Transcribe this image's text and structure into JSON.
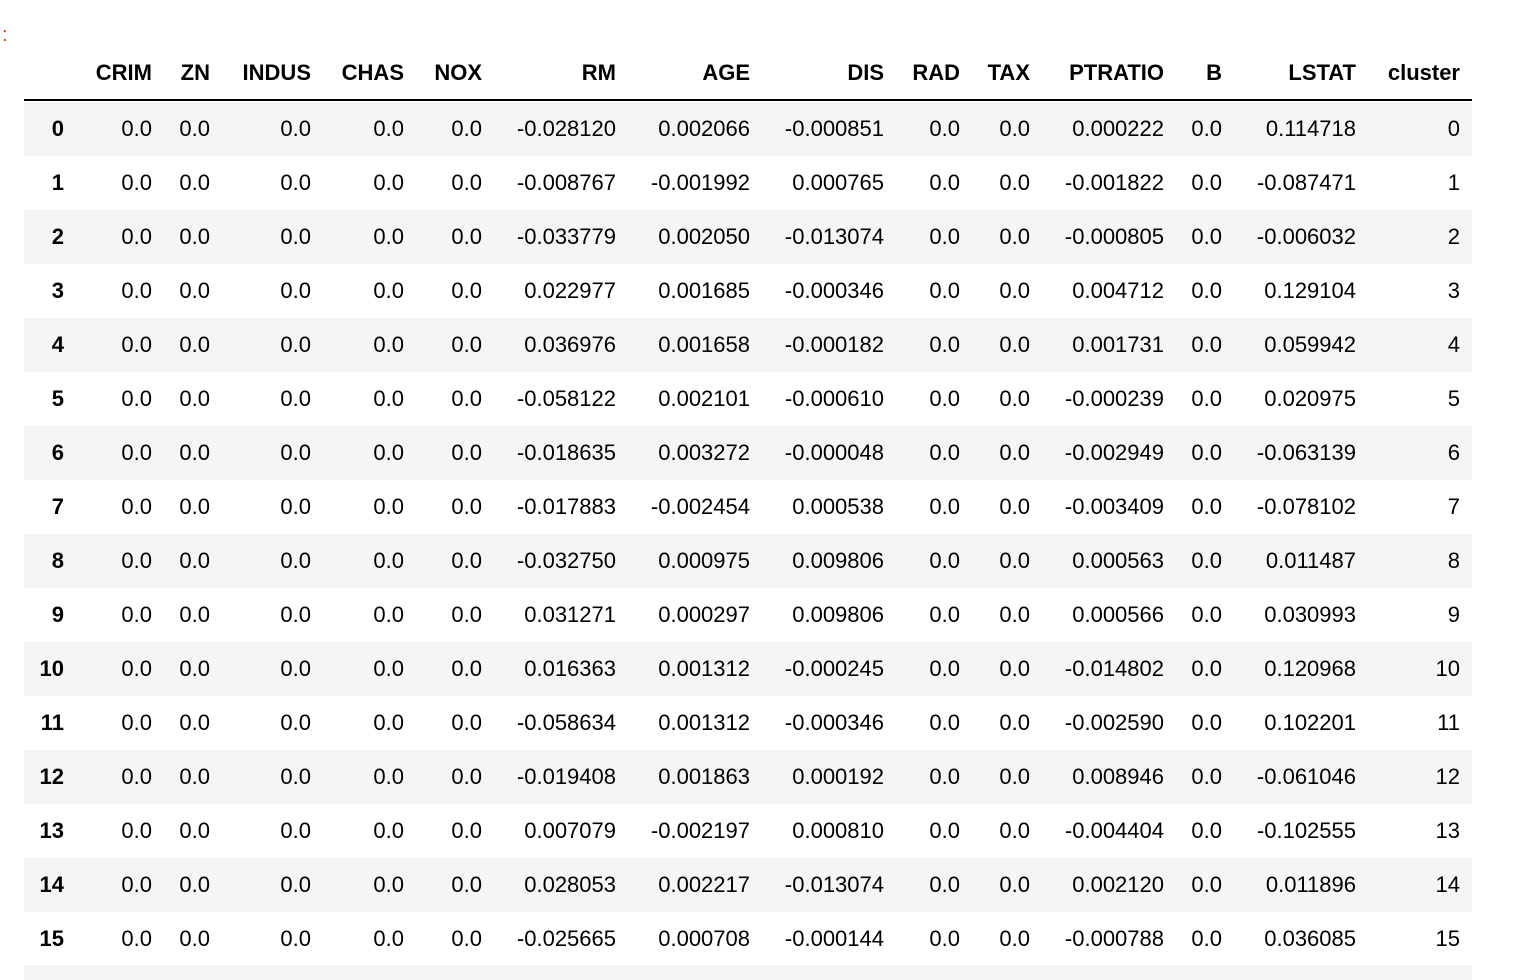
{
  "prompt": ":",
  "table": {
    "columns": [
      "CRIM",
      "ZN",
      "INDUS",
      "CHAS",
      "NOX",
      "RM",
      "AGE",
      "DIS",
      "RAD",
      "TAX",
      "PTRATIO",
      "B",
      "LSTAT",
      "cluster"
    ],
    "rows": [
      {
        "index": "0",
        "cells": [
          "0.0",
          "0.0",
          "0.0",
          "0.0",
          "0.0",
          "-0.028120",
          "0.002066",
          "-0.000851",
          "0.0",
          "0.0",
          "0.000222",
          "0.0",
          "0.114718",
          "0"
        ]
      },
      {
        "index": "1",
        "cells": [
          "0.0",
          "0.0",
          "0.0",
          "0.0",
          "0.0",
          "-0.008767",
          "-0.001992",
          "0.000765",
          "0.0",
          "0.0",
          "-0.001822",
          "0.0",
          "-0.087471",
          "1"
        ]
      },
      {
        "index": "2",
        "cells": [
          "0.0",
          "0.0",
          "0.0",
          "0.0",
          "0.0",
          "-0.033779",
          "0.002050",
          "-0.013074",
          "0.0",
          "0.0",
          "-0.000805",
          "0.0",
          "-0.006032",
          "2"
        ]
      },
      {
        "index": "3",
        "cells": [
          "0.0",
          "0.0",
          "0.0",
          "0.0",
          "0.0",
          "0.022977",
          "0.001685",
          "-0.000346",
          "0.0",
          "0.0",
          "0.004712",
          "0.0",
          "0.129104",
          "3"
        ]
      },
      {
        "index": "4",
        "cells": [
          "0.0",
          "0.0",
          "0.0",
          "0.0",
          "0.0",
          "0.036976",
          "0.001658",
          "-0.000182",
          "0.0",
          "0.0",
          "0.001731",
          "0.0",
          "0.059942",
          "4"
        ]
      },
      {
        "index": "5",
        "cells": [
          "0.0",
          "0.0",
          "0.0",
          "0.0",
          "0.0",
          "-0.058122",
          "0.002101",
          "-0.000610",
          "0.0",
          "0.0",
          "-0.000239",
          "0.0",
          "0.020975",
          "5"
        ]
      },
      {
        "index": "6",
        "cells": [
          "0.0",
          "0.0",
          "0.0",
          "0.0",
          "0.0",
          "-0.018635",
          "0.003272",
          "-0.000048",
          "0.0",
          "0.0",
          "-0.002949",
          "0.0",
          "-0.063139",
          "6"
        ]
      },
      {
        "index": "7",
        "cells": [
          "0.0",
          "0.0",
          "0.0",
          "0.0",
          "0.0",
          "-0.017883",
          "-0.002454",
          "0.000538",
          "0.0",
          "0.0",
          "-0.003409",
          "0.0",
          "-0.078102",
          "7"
        ]
      },
      {
        "index": "8",
        "cells": [
          "0.0",
          "0.0",
          "0.0",
          "0.0",
          "0.0",
          "-0.032750",
          "0.000975",
          "0.009806",
          "0.0",
          "0.0",
          "0.000563",
          "0.0",
          "0.011487",
          "8"
        ]
      },
      {
        "index": "9",
        "cells": [
          "0.0",
          "0.0",
          "0.0",
          "0.0",
          "0.0",
          "0.031271",
          "0.000297",
          "0.009806",
          "0.0",
          "0.0",
          "0.000566",
          "0.0",
          "0.030993",
          "9"
        ]
      },
      {
        "index": "10",
        "cells": [
          "0.0",
          "0.0",
          "0.0",
          "0.0",
          "0.0",
          "0.016363",
          "0.001312",
          "-0.000245",
          "0.0",
          "0.0",
          "-0.014802",
          "0.0",
          "0.120968",
          "10"
        ]
      },
      {
        "index": "11",
        "cells": [
          "0.0",
          "0.0",
          "0.0",
          "0.0",
          "0.0",
          "-0.058634",
          "0.001312",
          "-0.000346",
          "0.0",
          "0.0",
          "-0.002590",
          "0.0",
          "0.102201",
          "11"
        ]
      },
      {
        "index": "12",
        "cells": [
          "0.0",
          "0.0",
          "0.0",
          "0.0",
          "0.0",
          "-0.019408",
          "0.001863",
          "0.000192",
          "0.0",
          "0.0",
          "0.008946",
          "0.0",
          "-0.061046",
          "12"
        ]
      },
      {
        "index": "13",
        "cells": [
          "0.0",
          "0.0",
          "0.0",
          "0.0",
          "0.0",
          "0.007079",
          "-0.002197",
          "0.000810",
          "0.0",
          "0.0",
          "-0.004404",
          "0.0",
          "-0.102555",
          "13"
        ]
      },
      {
        "index": "14",
        "cells": [
          "0.0",
          "0.0",
          "0.0",
          "0.0",
          "0.0",
          "0.028053",
          "0.002217",
          "-0.013074",
          "0.0",
          "0.0",
          "0.002120",
          "0.0",
          "0.011896",
          "14"
        ]
      },
      {
        "index": "15",
        "cells": [
          "0.0",
          "0.0",
          "0.0",
          "0.0",
          "0.0",
          "-0.025665",
          "0.000708",
          "-0.000144",
          "0.0",
          "0.0",
          "-0.000788",
          "0.0",
          "0.036085",
          "15"
        ]
      }
    ]
  }
}
